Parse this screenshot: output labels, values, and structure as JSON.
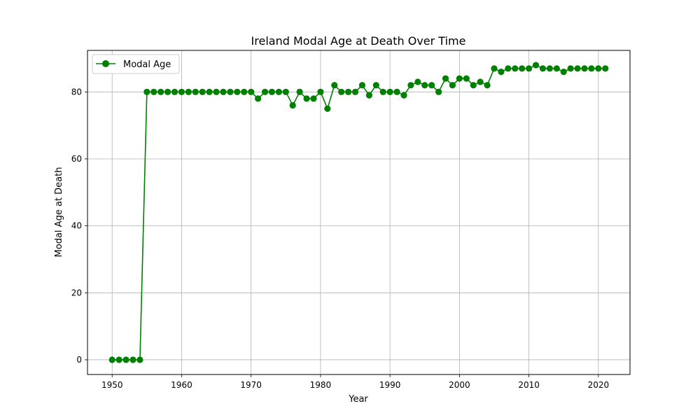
{
  "chart_data": {
    "type": "line",
    "title": "Ireland Modal Age at Death Over Time",
    "xlabel": "Year",
    "ylabel": "Modal Age at Death",
    "xlim": [
      1946.45,
      2024.55
    ],
    "ylim": [
      -4.4,
      92.4
    ],
    "xticks": [
      1950,
      1960,
      1970,
      1980,
      1990,
      2000,
      2010,
      2020
    ],
    "yticks": [
      0,
      20,
      40,
      60,
      80
    ],
    "grid": true,
    "legend_position": "top-left",
    "series": [
      {
        "name": "Modal Age",
        "color": "#008000",
        "marker": "circle",
        "x": [
          1950,
          1951,
          1952,
          1953,
          1954,
          1955,
          1956,
          1957,
          1958,
          1959,
          1960,
          1961,
          1962,
          1963,
          1964,
          1965,
          1966,
          1967,
          1968,
          1969,
          1970,
          1971,
          1972,
          1973,
          1974,
          1975,
          1976,
          1977,
          1978,
          1979,
          1980,
          1981,
          1982,
          1983,
          1984,
          1985,
          1986,
          1987,
          1988,
          1989,
          1990,
          1991,
          1992,
          1993,
          1994,
          1995,
          1996,
          1997,
          1998,
          1999,
          2000,
          2001,
          2002,
          2003,
          2004,
          2005,
          2006,
          2007,
          2008,
          2009,
          2010,
          2011,
          2012,
          2013,
          2014,
          2015,
          2016,
          2017,
          2018,
          2019,
          2020,
          2021
        ],
        "values": [
          0,
          0,
          0,
          0,
          0,
          80,
          80,
          80,
          80,
          80,
          80,
          80,
          80,
          80,
          80,
          80,
          80,
          80,
          80,
          80,
          80,
          78,
          80,
          80,
          80,
          80,
          76,
          80,
          78,
          78,
          80,
          75,
          82,
          80,
          80,
          80,
          82,
          79,
          82,
          80,
          80,
          80,
          79,
          82,
          83,
          82,
          82,
          80,
          84,
          82,
          84,
          84,
          82,
          83,
          82,
          87,
          86,
          87,
          87,
          87,
          87,
          88,
          87,
          87,
          87,
          86,
          87,
          87,
          87,
          87,
          87,
          87
        ]
      }
    ]
  }
}
